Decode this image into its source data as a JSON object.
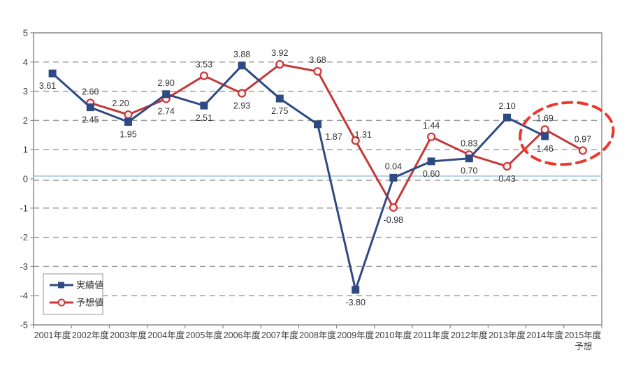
{
  "chart_data": {
    "type": "line",
    "title": "",
    "categories": [
      "2001年度",
      "2002年度",
      "2003年度",
      "2004年度",
      "2005年度",
      "2006年度",
      "2007年度",
      "2008年度",
      "2009年度",
      "2010年度",
      "2011年度",
      "2012年度",
      "2013年度",
      "2014年度",
      "2015年度"
    ],
    "last_category_sub_label": "予想",
    "ylim": [
      -5,
      5
    ],
    "ytick_labels": [
      "5",
      "4",
      "3",
      "2",
      "1",
      "0",
      "-1",
      "-2",
      "-3",
      "-4",
      "-5"
    ],
    "grid": "horizontal-dashed",
    "legend_position": "inside-bottom-left",
    "series": [
      {
        "name": "予想値",
        "key": "forecast",
        "color": "#C63838",
        "marker": "open-circle",
        "values": [
          null,
          2.6,
          2.2,
          2.74,
          3.53,
          2.93,
          3.92,
          3.68,
          1.31,
          -0.98,
          1.44,
          0.83,
          0.43,
          1.69,
          0.97
        ],
        "label_pos": [
          null,
          "above",
          "above-left",
          "below",
          "above",
          "below",
          "above",
          "above",
          "above-right",
          "below",
          "above",
          "above",
          "below",
          "above",
          "above"
        ]
      },
      {
        "name": "実績値",
        "key": "actual",
        "color": "#2F4A82",
        "marker": "filled-square",
        "values": [
          3.61,
          2.45,
          1.95,
          2.9,
          2.51,
          3.88,
          2.75,
          1.87,
          -3.8,
          0.04,
          0.6,
          0.7,
          2.1,
          1.46,
          null
        ],
        "label_pos": [
          "below-left",
          "below",
          "below",
          "above",
          "below",
          "above",
          "below",
          "below-right",
          "below",
          "above",
          "below",
          "below",
          "above",
          "below",
          null
        ]
      }
    ],
    "legend_order": [
      "実績値",
      "予想値"
    ],
    "colors": {
      "grid": "#9C9C9C",
      "zero_line": "#9CC3E5",
      "frame": "#8C8C8C",
      "label_text": "#333333",
      "axis_text": "#404040",
      "annotation": "#E8392E",
      "background": "#FFFFFF"
    },
    "annotation_ellipse": {
      "around_categories": [
        "2014年度",
        "2015年度"
      ],
      "style": "dashed"
    }
  }
}
